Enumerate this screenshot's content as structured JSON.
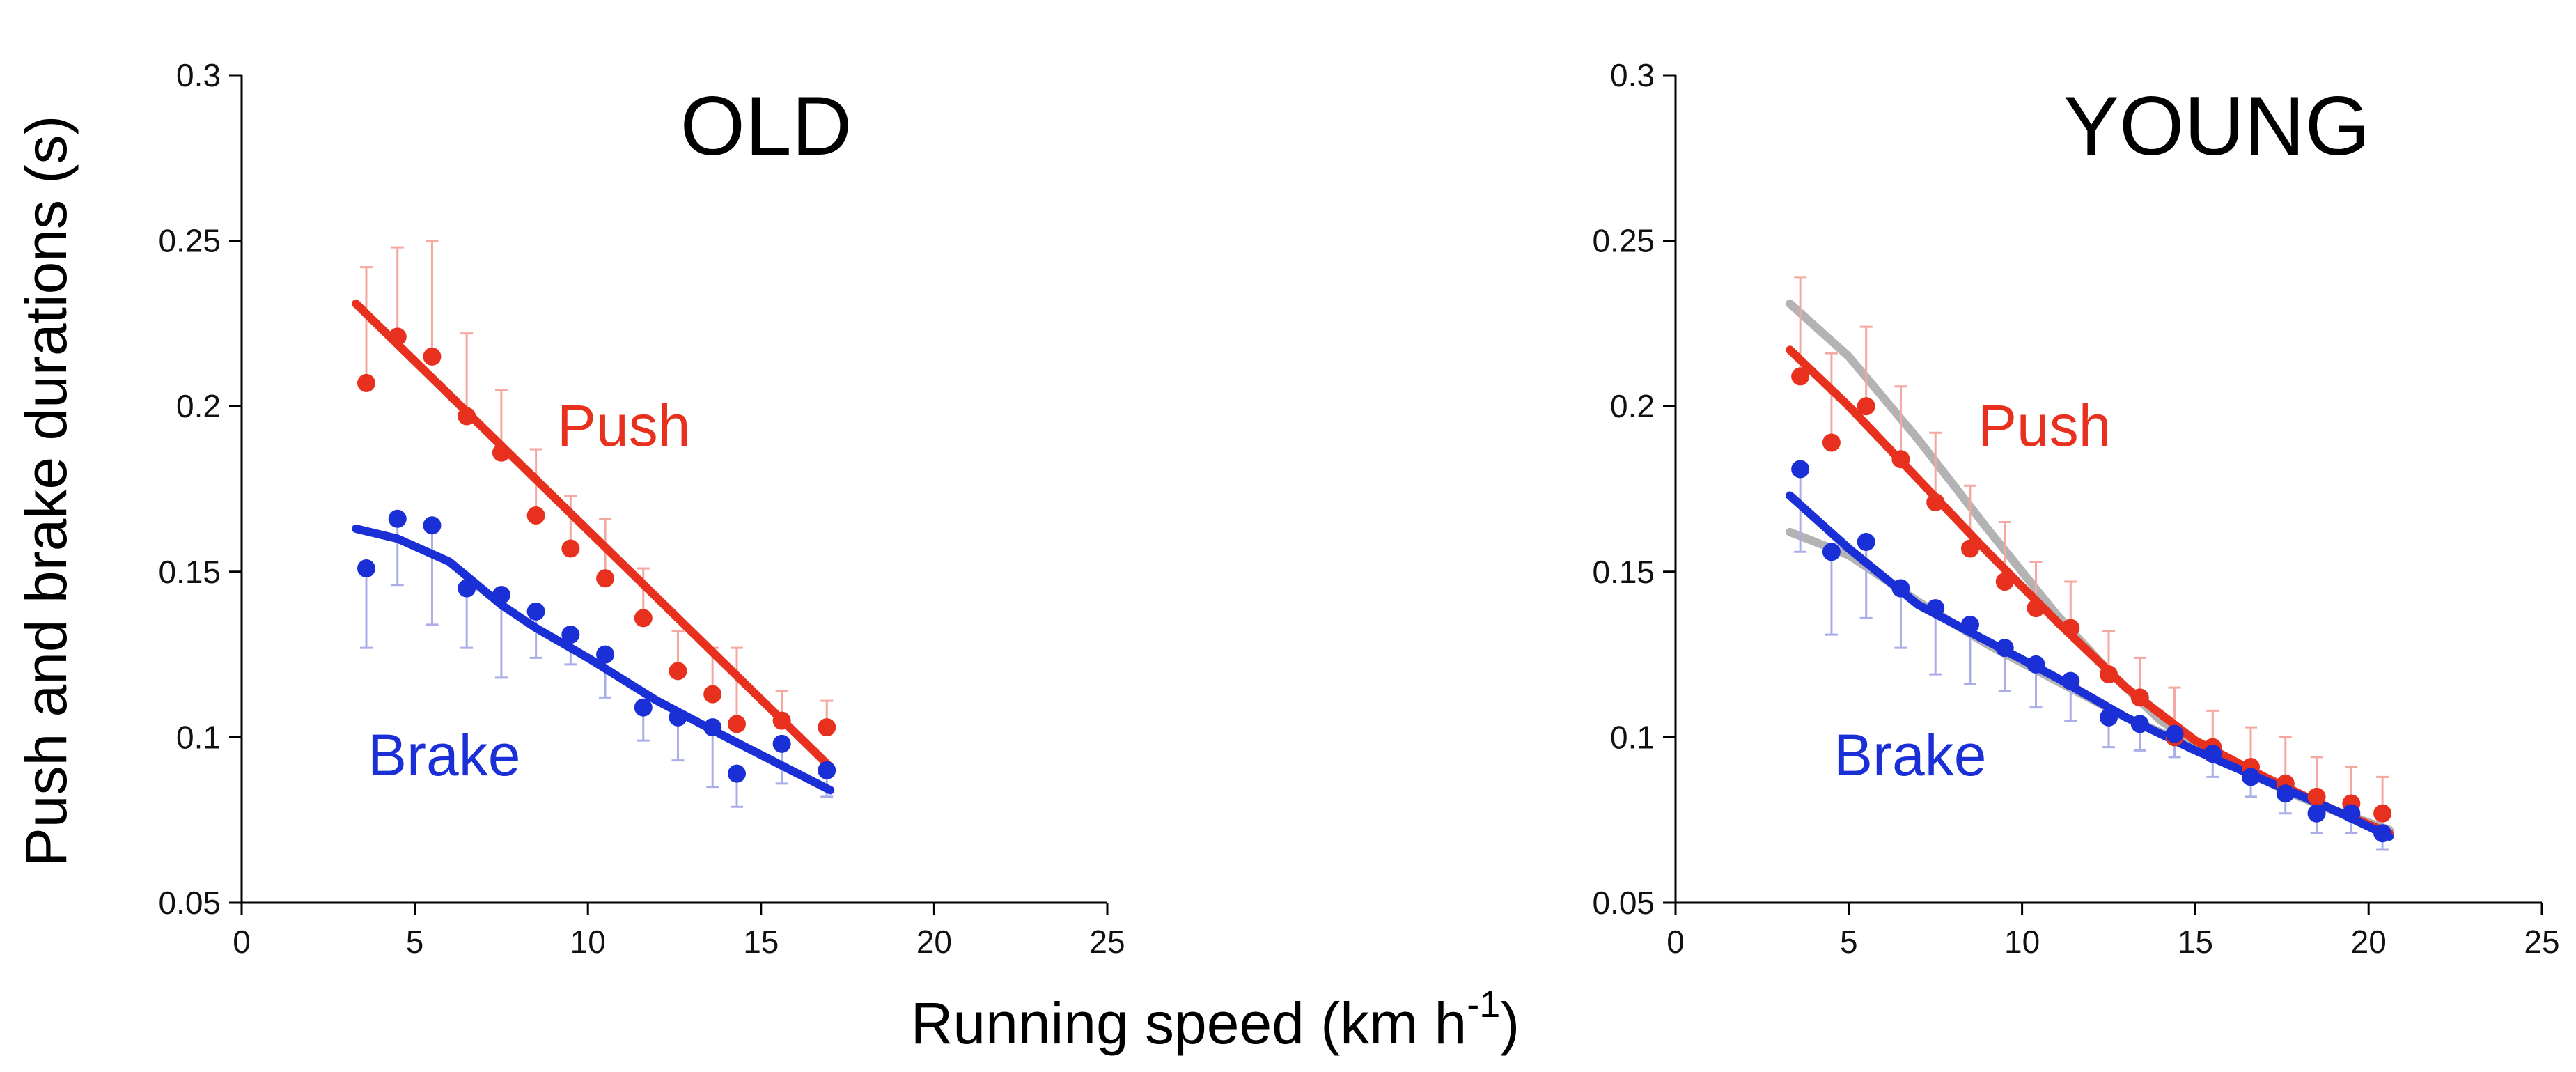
{
  "figure": {
    "ylabel": "Push and brake durations (s)",
    "xlabel_main": "Running speed (km h",
    "xlabel_sup": "-1",
    "xlabel_close": ")"
  },
  "colors": {
    "push": "#e8301e",
    "brake": "#1a2fd6",
    "reference": "#b3b3b3",
    "push_errorbar": "#f4a8a0",
    "brake_errorbar": "#a9aee8"
  },
  "chart_data": [
    {
      "type": "scatter",
      "title": "OLD",
      "xlabel": "Running speed (km h-1)",
      "ylabel": "Push and brake durations (s)",
      "xlim": [
        0,
        25
      ],
      "ylim": [
        0.05,
        0.3
      ],
      "xticks": [
        "0",
        "5",
        "10",
        "15",
        "20",
        "25"
      ],
      "yticks": [
        "0.05",
        "0.1",
        "0.15",
        "0.2",
        "0.25",
        "0.3"
      ],
      "series": [
        {
          "name": "Push",
          "label": "Push",
          "color": "#e8301e",
          "x": [
            3.6,
            4.5,
            5.5,
            6.5,
            7.5,
            8.5,
            9.5,
            10.5,
            11.6,
            12.6,
            13.6,
            14.3,
            15.6,
            16.9
          ],
          "y": [
            0.207,
            0.221,
            0.215,
            0.197,
            0.186,
            0.167,
            0.157,
            0.148,
            0.136,
            0.12,
            0.113,
            0.104,
            0.105,
            0.103
          ],
          "err_upper": [
            0.035,
            0.027,
            0.035,
            0.025,
            0.019,
            0.02,
            0.016,
            0.018,
            0.015,
            0.012,
            0.014,
            0.023,
            0.009,
            0.008
          ]
        },
        {
          "name": "Brake",
          "label": "Brake",
          "color": "#1a2fd6",
          "x": [
            3.6,
            4.5,
            5.5,
            6.5,
            7.5,
            8.5,
            9.5,
            10.5,
            11.6,
            12.6,
            13.6,
            14.3,
            15.6,
            16.9
          ],
          "y": [
            0.151,
            0.166,
            0.164,
            0.145,
            0.143,
            0.138,
            0.131,
            0.125,
            0.109,
            0.106,
            0.103,
            0.089,
            0.098,
            0.09
          ],
          "err_lower": [
            0.024,
            0.02,
            0.03,
            0.018,
            0.025,
            0.014,
            0.009,
            0.013,
            0.01,
            0.013,
            0.018,
            0.01,
            0.012,
            0.008
          ]
        }
      ],
      "fits": [
        {
          "name": "Push fit",
          "color": "#e8301e",
          "x": [
            3.3,
            17.0
          ],
          "y": [
            0.231,
            0.091
          ]
        },
        {
          "name": "Brake fit",
          "color": "#1a2fd6",
          "x": [
            3.3,
            4.5,
            6.0,
            7.5,
            8.5,
            10.0,
            12.0,
            14.0,
            17.0
          ],
          "y": [
            0.163,
            0.16,
            0.153,
            0.14,
            0.133,
            0.124,
            0.111,
            0.1,
            0.084
          ]
        }
      ]
    },
    {
      "type": "scatter",
      "title": "YOUNG",
      "xlabel": "Running speed (km h-1)",
      "ylabel": "Push and brake durations (s)",
      "xlim": [
        0,
        25
      ],
      "ylim": [
        0.05,
        0.3
      ],
      "xticks": [
        "0",
        "5",
        "10",
        "15",
        "20",
        "25"
      ],
      "yticks": [
        "0.05",
        "0.1",
        "0.15",
        "0.2",
        "0.25",
        "0.3"
      ],
      "series": [
        {
          "name": "Push",
          "label": "Push",
          "color": "#e8301e",
          "x": [
            3.6,
            4.5,
            5.5,
            6.5,
            7.5,
            8.5,
            9.5,
            10.4,
            11.4,
            12.5,
            13.4,
            14.4,
            15.5,
            16.6,
            17.6,
            18.5,
            19.5,
            20.4
          ],
          "y": [
            0.209,
            0.189,
            0.2,
            0.184,
            0.171,
            0.157,
            0.147,
            0.139,
            0.133,
            0.119,
            0.112,
            0.1,
            0.097,
            0.091,
            0.086,
            0.082,
            0.08,
            0.077
          ],
          "err_upper": [
            0.03,
            0.027,
            0.024,
            0.022,
            0.021,
            0.019,
            0.018,
            0.014,
            0.014,
            0.013,
            0.012,
            0.015,
            0.011,
            0.012,
            0.014,
            0.012,
            0.011,
            0.011
          ]
        },
        {
          "name": "Brake",
          "label": "Brake",
          "color": "#1a2fd6",
          "x": [
            3.6,
            4.5,
            5.5,
            6.5,
            7.5,
            8.5,
            9.5,
            10.4,
            11.4,
            12.5,
            13.4,
            14.4,
            15.5,
            16.6,
            17.6,
            18.5,
            19.5,
            20.4
          ],
          "y": [
            0.181,
            0.156,
            0.159,
            0.145,
            0.139,
            0.134,
            0.127,
            0.122,
            0.117,
            0.106,
            0.104,
            0.101,
            0.095,
            0.088,
            0.083,
            0.077,
            0.077,
            0.071
          ],
          "err_lower": [
            0.025,
            0.025,
            0.023,
            0.018,
            0.02,
            0.018,
            0.013,
            0.013,
            0.012,
            0.009,
            0.008,
            0.007,
            0.007,
            0.006,
            0.006,
            0.006,
            0.006,
            0.005
          ]
        }
      ],
      "fits": [
        {
          "name": "Push fit",
          "color": "#e8301e",
          "x": [
            3.3,
            5.0,
            7.0,
            9.0,
            11.0,
            13.0,
            15.0,
            17.0,
            19.0,
            20.6
          ],
          "y": [
            0.217,
            0.2,
            0.178,
            0.156,
            0.135,
            0.115,
            0.099,
            0.088,
            0.078,
            0.071
          ]
        },
        {
          "name": "Brake fit",
          "color": "#1a2fd6",
          "x": [
            3.3,
            5.0,
            7.0,
            9.0,
            11.0,
            13.0,
            15.0,
            17.0,
            19.0,
            20.6
          ],
          "y": [
            0.173,
            0.157,
            0.14,
            0.129,
            0.118,
            0.106,
            0.096,
            0.087,
            0.078,
            0.07
          ]
        },
        {
          "name": "OLD push reference",
          "color": "#b3b3b3",
          "x": [
            3.3,
            5.0,
            7.0,
            9.0,
            11.0,
            12.5,
            14.0,
            16.0,
            18.0,
            20.6
          ],
          "y": [
            0.231,
            0.215,
            0.19,
            0.163,
            0.137,
            0.12,
            0.105,
            0.092,
            0.082,
            0.071
          ]
        },
        {
          "name": "OLD brake reference",
          "color": "#b3b3b3",
          "x": [
            3.3,
            5.0,
            7.0,
            9.0,
            11.0,
            13.0,
            15.0,
            17.0,
            19.0,
            20.6
          ],
          "y": [
            0.162,
            0.155,
            0.141,
            0.128,
            0.117,
            0.106,
            0.097,
            0.087,
            0.078,
            0.072
          ]
        }
      ]
    }
  ]
}
